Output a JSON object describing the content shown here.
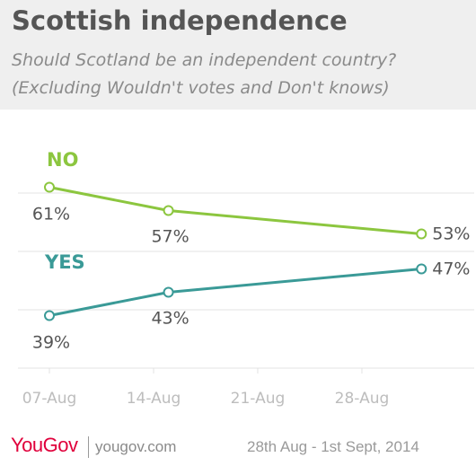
{
  "header": {
    "title": "Scottish independence",
    "subtitle_line1": "Should Scotland be an independent country?",
    "subtitle_line2": "(Excluding Wouldn't votes and Don't knows)"
  },
  "footer": {
    "logo": "YouGov",
    "url": "yougov.com",
    "date_range": "28th Aug - 1st Sept, 2014"
  },
  "colors": {
    "no": "#8cc63f",
    "yes": "#3a9a97",
    "grid": "#e3e3e3",
    "axis_text": "#bdbdbd",
    "value_text": "#555555",
    "brand": "#e0003b"
  },
  "chart_data": {
    "type": "line",
    "x": [
      "2014-08-07",
      "2014-08-15",
      "2014-09-01"
    ],
    "x_ticks": [
      "07-Aug",
      "14-Aug",
      "21-Aug",
      "28-Aug"
    ],
    "series": [
      {
        "name": "NO",
        "values": [
          61,
          57,
          53
        ],
        "labels": [
          "61%",
          "57%",
          "53%"
        ]
      },
      {
        "name": "YES",
        "values": [
          39,
          43,
          47
        ],
        "labels": [
          "39%",
          "43%",
          "47%"
        ]
      }
    ],
    "grid": true,
    "legend": "inline-left"
  }
}
